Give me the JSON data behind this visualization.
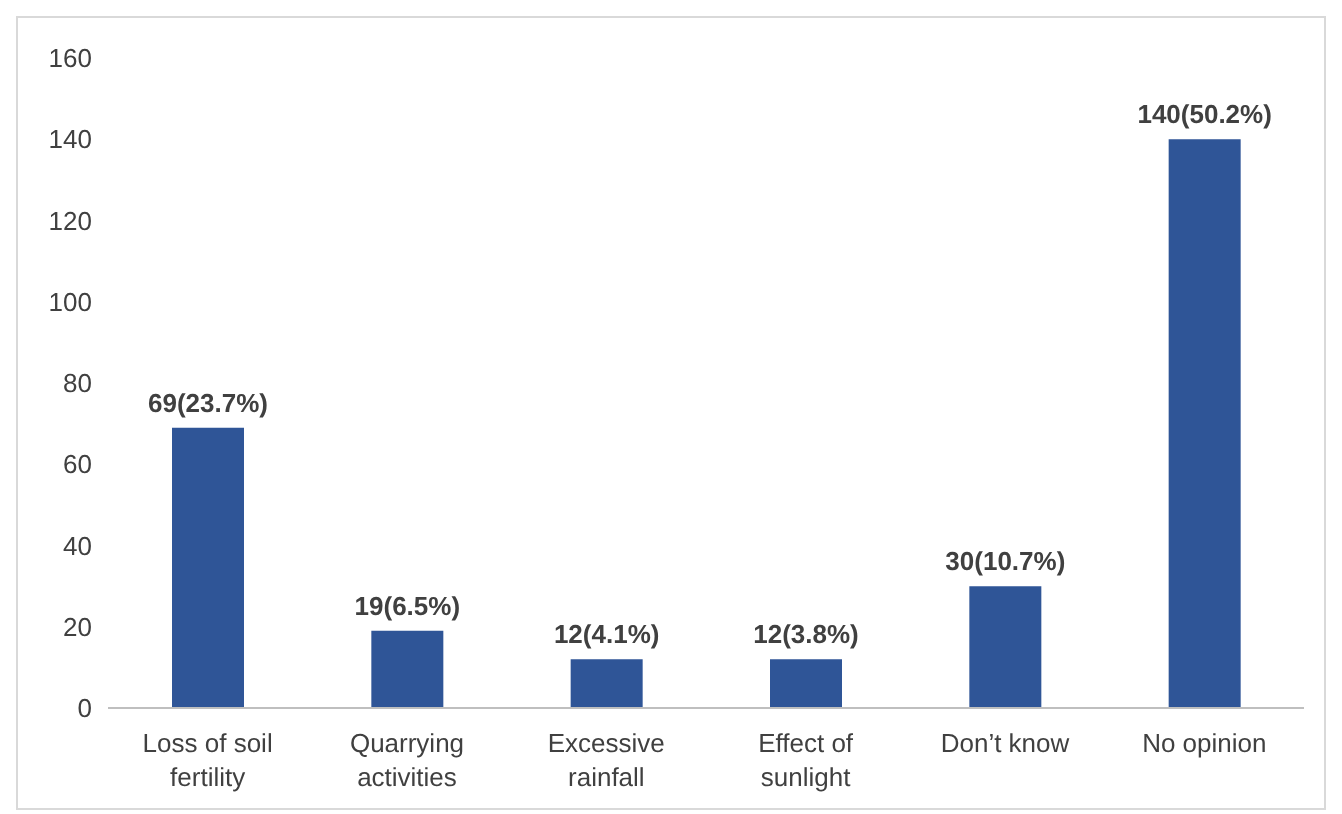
{
  "chart_data": {
    "type": "bar",
    "categories": [
      "Loss of soil fertility",
      "Quarrying activities",
      "Excessive rainfall",
      "Effect of sunlight",
      "Don’t know",
      "No opinion"
    ],
    "values": [
      69,
      19,
      12,
      12,
      30,
      140
    ],
    "value_labels": [
      "69(23.7%)",
      "19(6.5%)",
      "12(4.1%)",
      "12(3.8%)",
      "30(10.7%)",
      "140(50.2%)"
    ],
    "color": "#2f5597",
    "ylim": [
      0,
      160
    ],
    "yticks": [
      0,
      20,
      40,
      60,
      80,
      100,
      120,
      140,
      160
    ],
    "grid": false,
    "legend": false
  }
}
